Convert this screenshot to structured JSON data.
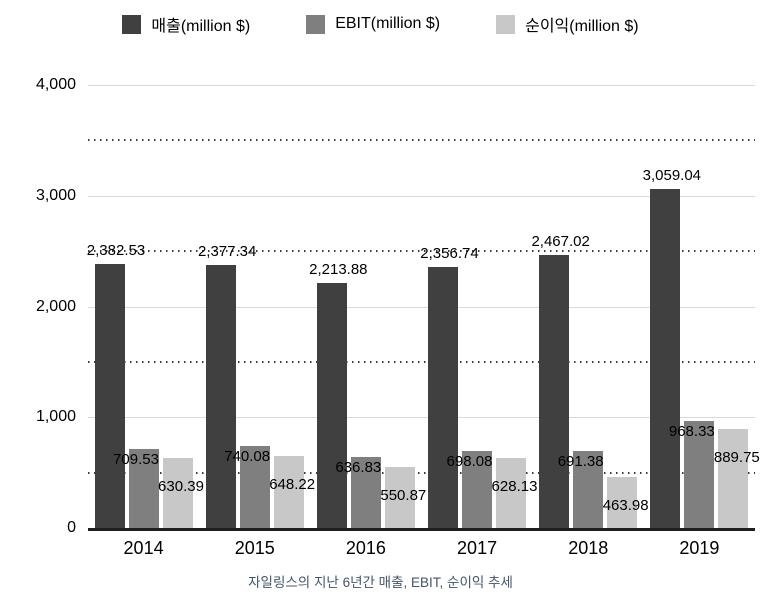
{
  "caption": "자일링스의 지난 6년간 매출, EBIT, 순이익 추세",
  "chart_data": {
    "type": "bar",
    "title": "",
    "xlabel": "",
    "ylabel": "",
    "categories": [
      "2014",
      "2015",
      "2016",
      "2017",
      "2018",
      "2019"
    ],
    "series": [
      {
        "name": "매출(million $)",
        "color": "#404040",
        "values": [
          2382.53,
          2377.34,
          2213.88,
          2356.74,
          2467.02,
          3059.04
        ],
        "labels": [
          "2,382.53",
          "2,377.34",
          "2,213.88",
          "2,356.74",
          "2,467.02",
          "3,059.04"
        ]
      },
      {
        "name": "EBIT(million $)",
        "color": "#7f7f7f",
        "values": [
          709.53,
          740.08,
          636.83,
          698.08,
          691.38,
          968.33
        ],
        "labels": [
          "709.53",
          "740.08",
          "636.83",
          "698.08",
          "691.38",
          "968.33"
        ]
      },
      {
        "name": "순이익(million $)",
        "color": "#c8c8c8",
        "values": [
          630.39,
          648.22,
          550.87,
          628.13,
          463.98,
          889.75
        ],
        "labels": [
          "630.39",
          "648.22",
          "550.87",
          "628.13",
          "463.98",
          "889.75"
        ]
      }
    ],
    "ylim": [
      0,
      4000
    ],
    "y_ticks": [
      "0",
      "1,000",
      "2,000",
      "3,000",
      "4,000"
    ],
    "y_tick_values": [
      0,
      1000,
      2000,
      3000,
      4000
    ],
    "dotted_gridline_values": [
      500,
      1500,
      2500,
      3500
    ],
    "grid": "solid light lines at 1,000 intervals, dotted dark lines at 500 offsets",
    "legend_position": "top-center"
  }
}
